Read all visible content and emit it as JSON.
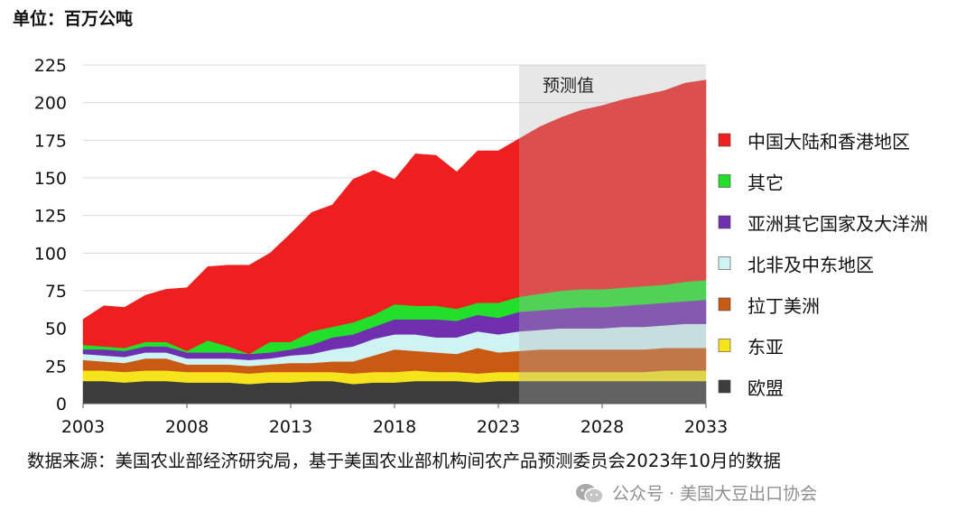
{
  "unit_label": "单位：百万公吨",
  "source": "数据来源：美国农业部经济研究局，基于美国农业部机构间农产品预测委员会2023年10月的数据",
  "watermark": "公众号 · 美国大豆出口协会",
  "chart_data": {
    "type": "area",
    "stacked": true,
    "x": [
      2003,
      2004,
      2005,
      2006,
      2007,
      2008,
      2009,
      2010,
      2011,
      2012,
      2013,
      2014,
      2015,
      2016,
      2017,
      2018,
      2019,
      2020,
      2021,
      2022,
      2023,
      2024,
      2025,
      2026,
      2027,
      2028,
      2029,
      2030,
      2031,
      2032,
      2033
    ],
    "xticks": [
      2003,
      2008,
      2013,
      2018,
      2023,
      2028,
      2033
    ],
    "yticks": [
      0,
      25,
      50,
      75,
      100,
      125,
      150,
      175,
      200,
      225
    ],
    "ylim": [
      0,
      225
    ],
    "xlim": [
      2003,
      2033
    ],
    "grid": "horizontal",
    "legend_position": "right",
    "projection": {
      "label": "预测值",
      "start": 2024,
      "end": 2033
    },
    "series": [
      {
        "name": "欧盟",
        "color": "#3c3c3c",
        "values": [
          15,
          15,
          14,
          15,
          15,
          14,
          14,
          14,
          13,
          14,
          14,
          15,
          15,
          13,
          14,
          14,
          15,
          15,
          15,
          14,
          15,
          15,
          15,
          15,
          15,
          15,
          15,
          15,
          15,
          15,
          15
        ]
      },
      {
        "name": "东亚",
        "color": "#f5e41c",
        "values": [
          7,
          7,
          7,
          7,
          7,
          7,
          7,
          7,
          7,
          7,
          7,
          6,
          6,
          7,
          7,
          7,
          7,
          6,
          6,
          6,
          6,
          6,
          6,
          6,
          6,
          6,
          6,
          6,
          7,
          7,
          7
        ]
      },
      {
        "name": "拉丁美洲",
        "color": "#c85a14",
        "values": [
          7,
          6,
          6,
          8,
          8,
          5,
          5,
          5,
          5,
          5,
          6,
          6,
          7,
          8,
          11,
          15,
          13,
          13,
          12,
          17,
          13,
          14,
          15,
          15,
          15,
          15,
          15,
          15,
          15,
          15,
          15
        ]
      },
      {
        "name": "北非及中东地区",
        "color": "#cff2f2",
        "values": [
          4,
          4,
          4,
          4,
          4,
          4,
          4,
          4,
          4,
          4,
          5,
          6,
          8,
          10,
          11,
          10,
          11,
          10,
          11,
          11,
          12,
          13,
          13,
          14,
          14,
          14,
          15,
          15,
          15,
          16,
          16
        ]
      },
      {
        "name": "亚洲其它国家及大洋洲",
        "color": "#6f2fae",
        "values": [
          3,
          4,
          4,
          4,
          4,
          4,
          4,
          4,
          4,
          4,
          4,
          6,
          8,
          8,
          8,
          10,
          10,
          12,
          11,
          11,
          11,
          13,
          13,
          13,
          14,
          14,
          14,
          15,
          15,
          15,
          16
        ]
      },
      {
        "name": "其它",
        "color": "#22e02a",
        "values": [
          3,
          2,
          2,
          3,
          3,
          1,
          8,
          4,
          0,
          7,
          5,
          9,
          7,
          8,
          8,
          10,
          9,
          9,
          8,
          8,
          10,
          10,
          11,
          12,
          12,
          12,
          12,
          12,
          12,
          13,
          13
        ]
      },
      {
        "name": "中国大陆和香港地区",
        "color": "#ef1f1f",
        "values": [
          17,
          27,
          27,
          31,
          35,
          42,
          49,
          54,
          59,
          59,
          72,
          79,
          81,
          95,
          96,
          83,
          101,
          100,
          91,
          101,
          101,
          105,
          111,
          115,
          119,
          122,
          125,
          127,
          129,
          132,
          133
        ]
      }
    ]
  }
}
